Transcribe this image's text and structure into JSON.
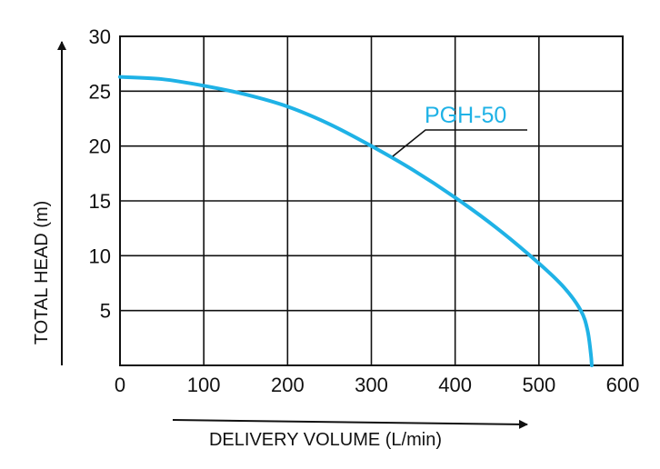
{
  "chart_data": {
    "type": "line",
    "xlabel": "DELIVERY VOLUME (L/min)",
    "ylabel": "TOTAL HEAD (m)",
    "xlim": [
      0,
      600
    ],
    "ylim": [
      0,
      30
    ],
    "x_ticks": [
      "0",
      "100",
      "200",
      "300",
      "400",
      "500",
      "600"
    ],
    "y_ticks": [
      "5",
      "10",
      "15",
      "20",
      "25",
      "30"
    ],
    "grid": true,
    "series": [
      {
        "name": "PGH-50",
        "color": "#1fb2e6",
        "x": [
          0,
          50,
          100,
          150,
          200,
          250,
          300,
          350,
          400,
          450,
          500,
          530,
          550,
          558,
          562,
          563
        ],
        "y": [
          26.3,
          26.1,
          25.5,
          24.7,
          23.6,
          22.0,
          20.0,
          17.8,
          15.3,
          12.5,
          9.3,
          7.1,
          5.0,
          3.2,
          1.0,
          0
        ]
      }
    ]
  }
}
